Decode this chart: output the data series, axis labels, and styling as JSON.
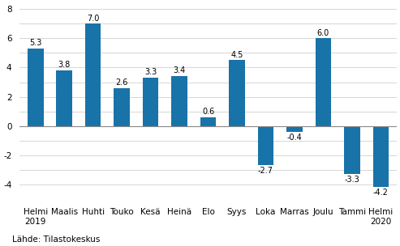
{
  "categories": [
    "Helmi\n2019",
    "Maalis",
    "Huhti",
    "Touko",
    "Kesä",
    "Heinä",
    "Elo",
    "Syys",
    "Loka",
    "Marras",
    "Joulu",
    "Tammi",
    "Helmi\n2020"
  ],
  "values": [
    5.3,
    3.8,
    7.0,
    2.6,
    3.3,
    3.4,
    0.6,
    4.5,
    -2.7,
    -0.4,
    6.0,
    -3.3,
    -4.2
  ],
  "bar_color": "#1873a8",
  "ylim": [
    -5.2,
    8.4
  ],
  "yticks": [
    -4,
    -3,
    -2,
    -1,
    0,
    1,
    2,
    3,
    4,
    5,
    6,
    7,
    8
  ],
  "ytick_labels": [
    "-4",
    "",
    "-2",
    "",
    "0",
    "",
    "2",
    "",
    "4",
    "",
    "6",
    "",
    "8"
  ],
  "source_text": "Lähde: Tilastokeskus",
  "label_fontsize": 7,
  "tick_fontsize": 7.5,
  "source_fontsize": 7.5,
  "bar_width": 0.55
}
